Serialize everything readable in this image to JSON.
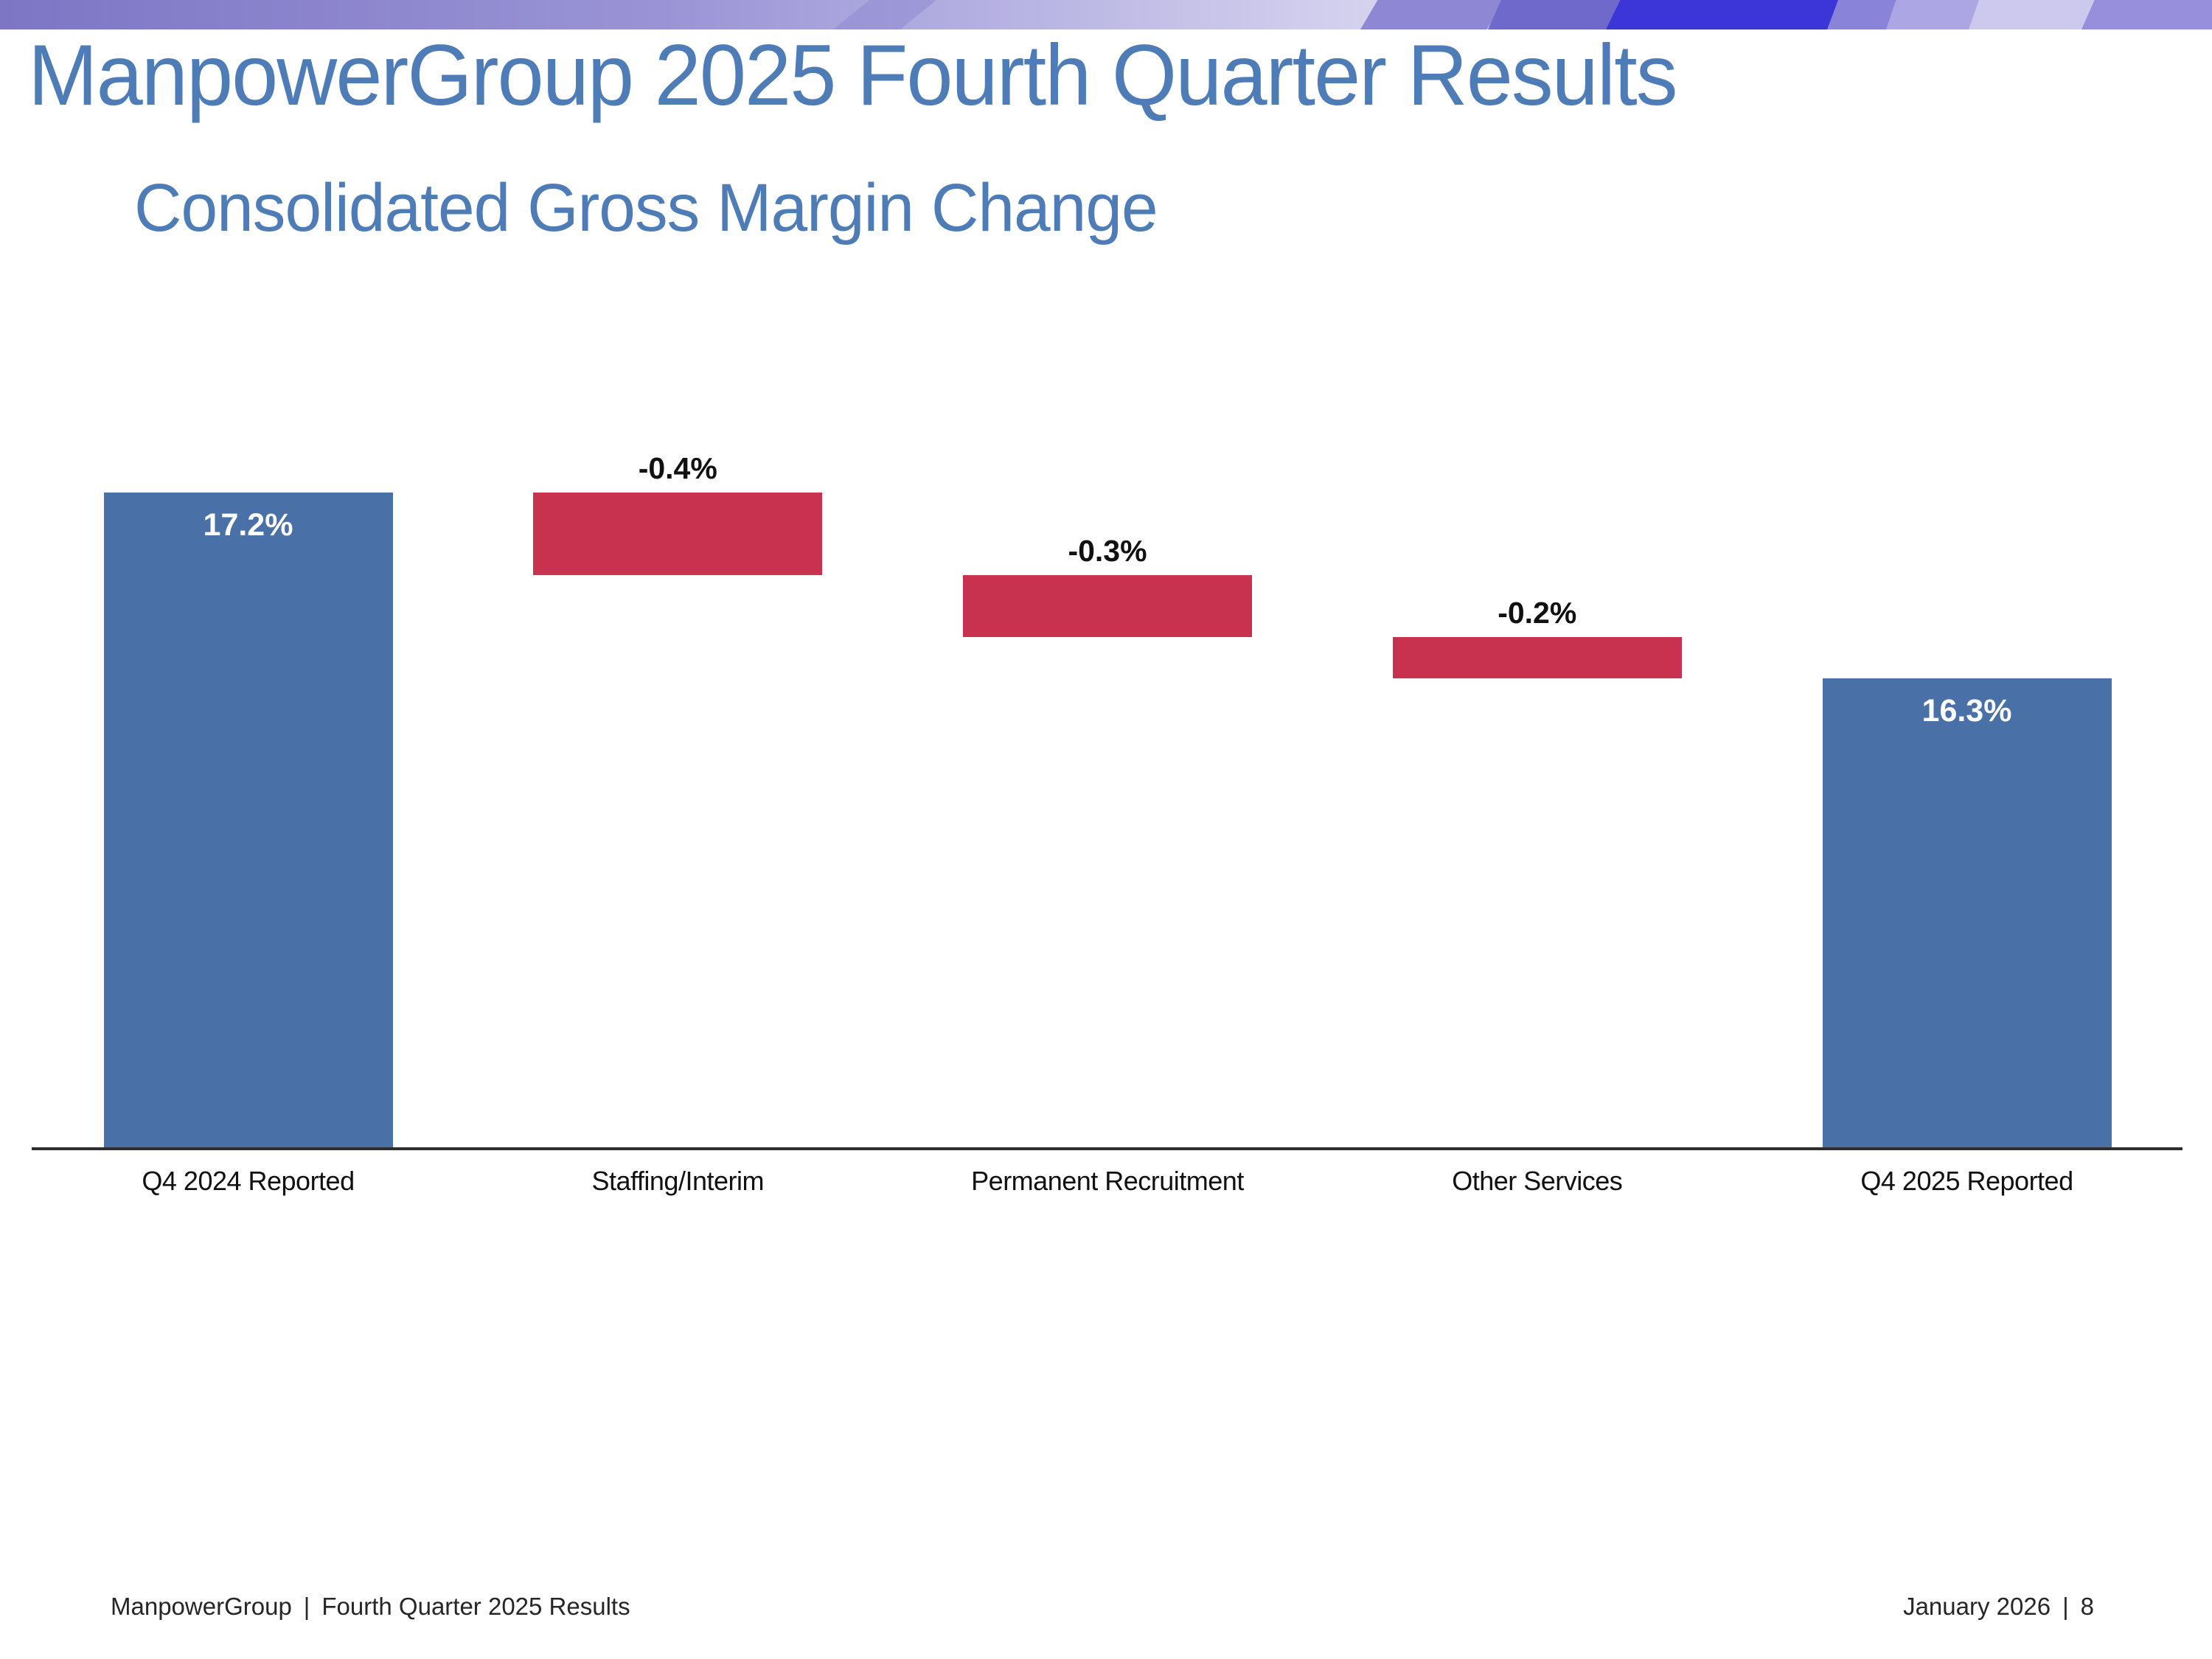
{
  "slide": {
    "title": "ManpowerGroup 2025 Fourth Quarter Results",
    "subtitle": "Consolidated Gross Margin Change"
  },
  "footer": {
    "brand": "ManpowerGroup",
    "separator": "|",
    "left_text": "Fourth Quarter 2025 Results",
    "right_date": "January 2026",
    "right_page": "8"
  },
  "colors": {
    "title_blue": "#4E7CB7",
    "bar_blue": "#4A70A8",
    "bar_red": "#C9324F",
    "axis": "#2E2E2E",
    "footer_text": "#262626",
    "label_dark": "#111111",
    "label_light": "#FFFFFF",
    "band_left": "#7D76C4",
    "band_mid": "#9A94D6",
    "band_right": "#D5D2EF",
    "band_facets": [
      "#8B85CF",
      "#8E88D4",
      "#7069CC",
      "#3C35D8",
      "#8A83DA",
      "#ACA7E4",
      "#CCC8EE",
      "#978FDC"
    ]
  },
  "chart_data": {
    "type": "bar",
    "subtype": "waterfall",
    "title": "Consolidated Gross Margin Change",
    "categories": [
      "Q4 2024 Reported",
      "Staffing/Interim",
      "Permanent Recruitment",
      "Other Services",
      "Q4 2025 Reported"
    ],
    "series": [
      {
        "name": "Gross Margin Change",
        "values": [
          17.2,
          -0.4,
          -0.3,
          -0.2,
          16.3
        ]
      }
    ],
    "labels": [
      "17.2%",
      "-0.4%",
      "-0.3%",
      "-0.2%",
      "16.3%"
    ],
    "bar_roles": [
      "total",
      "decrease",
      "decrease",
      "decrease",
      "total"
    ],
    "xlabel": "",
    "ylabel": "",
    "ylim": [
      14.0,
      17.5
    ],
    "grid": false,
    "legend": false
  }
}
